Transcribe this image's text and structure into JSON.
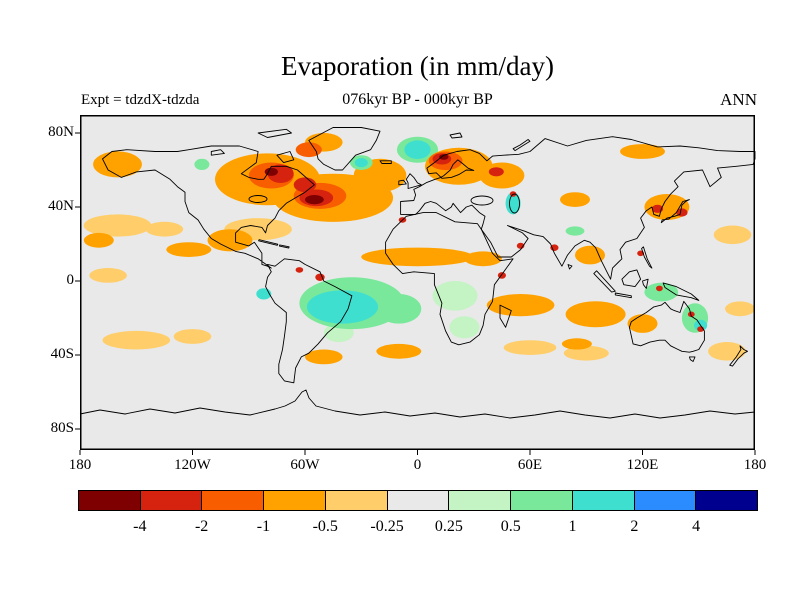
{
  "chart_data": {
    "type": "heatmap",
    "map_type": "global filled-contour anomaly map (equirectangular)",
    "title": "Evaporation (in mm/day)",
    "subtitle": "076kyr BP - 000kyr BP",
    "annotations": {
      "left": "Expt = tdzdX-tdzda",
      "right": "ANN"
    },
    "units": "mm/day",
    "background_color": "#e9e9e9",
    "x_axis": {
      "tick_values": [
        -180,
        -120,
        -60,
        0,
        60,
        120,
        180
      ],
      "tick_labels": [
        "180",
        "120W",
        "60W",
        "0",
        "60E",
        "120E",
        "180"
      ],
      "range": [
        -180,
        180
      ]
    },
    "y_axis": {
      "tick_values": [
        80,
        40,
        0,
        -40,
        -80
      ],
      "tick_labels": [
        "80N",
        "40N",
        "0",
        "40S",
        "80S"
      ],
      "range": [
        -90,
        90
      ]
    },
    "colorbar": {
      "levels": [
        -4,
        -2,
        -1,
        -0.5,
        -0.25,
        0.25,
        0.5,
        1,
        2,
        4
      ],
      "labels": [
        "-4",
        "-2",
        "-1",
        "-0.5",
        "-0.25",
        "0.25",
        "0.5",
        "1",
        "2",
        "4"
      ],
      "colors": [
        "#7e0000",
        "#d62310",
        "#f85e00",
        "#ffa200",
        "#ffce6b",
        "#e9e9e9",
        "#c4f3c4",
        "#79e89b",
        "#3fdfd0",
        "#2b8cff",
        "#00008f"
      ]
    },
    "anomaly_regions_format": [
      "lon_deg",
      "lat_deg",
      "radius_lon_deg",
      "radius_lat_deg",
      "color_level_index"
    ],
    "anomaly_regions": [
      [
        -80,
        55,
        28,
        14,
        3
      ],
      [
        -45,
        45,
        32,
        13,
        3
      ],
      [
        -20,
        57,
        14,
        9,
        3
      ],
      [
        -85,
        28,
        18,
        6,
        4
      ],
      [
        -165,
        3,
        10,
        4,
        4
      ],
      [
        -78,
        57,
        12,
        7,
        2
      ],
      [
        -52,
        46,
        14,
        7,
        2
      ],
      [
        -73,
        58,
        7,
        5,
        1
      ],
      [
        -78,
        59,
        3.5,
        2.2,
        0
      ],
      [
        -54,
        45,
        9,
        4.5,
        1
      ],
      [
        -60,
        52,
        6,
        4,
        1
      ],
      [
        -55,
        44,
        5,
        2.5,
        0
      ],
      [
        -58,
        71,
        7,
        4,
        2
      ],
      [
        -160,
        63,
        13,
        7,
        3
      ],
      [
        -50,
        75,
        10,
        5,
        3
      ],
      [
        -115,
        63,
        4,
        3,
        7
      ],
      [
        -122,
        17,
        12,
        4,
        3
      ],
      [
        -100,
        22,
        12,
        6,
        3
      ],
      [
        -52,
        2,
        2.5,
        2,
        1
      ],
      [
        -63,
        6,
        2,
        1.5,
        1
      ],
      [
        0,
        71,
        11,
        7,
        7
      ],
      [
        0,
        71,
        7,
        5,
        8
      ],
      [
        -30,
        64,
        6,
        4,
        7
      ],
      [
        -30,
        64,
        3.5,
        2.5,
        8
      ],
      [
        22,
        62,
        18,
        10,
        3
      ],
      [
        15,
        65,
        9,
        5,
        2
      ],
      [
        13,
        66,
        5,
        3,
        1
      ],
      [
        14,
        67,
        2.5,
        1.5,
        0
      ],
      [
        45,
        57,
        12,
        7,
        3
      ],
      [
        42,
        59,
        4,
        2.5,
        1
      ],
      [
        120,
        70,
        12,
        4,
        3
      ],
      [
        84,
        44,
        8,
        4,
        3
      ],
      [
        51,
        42,
        4,
        6,
        8
      ],
      [
        51,
        47,
        1.7,
        1.5,
        1
      ],
      [
        0,
        13,
        30,
        5,
        3
      ],
      [
        35,
        12,
        10,
        4,
        3
      ],
      [
        -8,
        33,
        2,
        1.5,
        1
      ],
      [
        45,
        3,
        2.2,
        1.8,
        1
      ],
      [
        20,
        -8,
        12,
        8,
        6
      ],
      [
        25,
        -25,
        8,
        6,
        6
      ],
      [
        -10,
        -15,
        12,
        8,
        7
      ],
      [
        -35,
        -12,
        28,
        14,
        7
      ],
      [
        -40,
        -14,
        19,
        9,
        8
      ],
      [
        -82,
        -7,
        4,
        3,
        8
      ],
      [
        -42,
        -28,
        8,
        5,
        6
      ],
      [
        -10,
        -38,
        12,
        4,
        3
      ],
      [
        55,
        -13,
        18,
        6,
        3
      ],
      [
        95,
        -18,
        16,
        7,
        3
      ],
      [
        92,
        14,
        8,
        5,
        3
      ],
      [
        73,
        18,
        2.2,
        1.8,
        1
      ],
      [
        55,
        19,
        2,
        1.7,
        1
      ],
      [
        84,
        27,
        5,
        2.5,
        7
      ],
      [
        60,
        -36,
        14,
        4,
        4
      ],
      [
        90,
        -39,
        12,
        4,
        4
      ],
      [
        85,
        -34,
        8,
        3,
        3
      ],
      [
        133,
        40,
        12,
        7,
        3
      ],
      [
        128,
        39,
        3,
        2.2,
        1
      ],
      [
        141,
        37,
        3,
        2.2,
        1
      ],
      [
        168,
        25,
        10,
        5,
        4
      ],
      [
        -160,
        30,
        18,
        6,
        4
      ],
      [
        -170,
        22,
        8,
        4,
        3
      ],
      [
        -135,
        28,
        10,
        4,
        4
      ],
      [
        130,
        -6,
        9,
        5,
        7
      ],
      [
        148,
        -20,
        7,
        8,
        7
      ],
      [
        151,
        -24,
        3.5,
        3,
        8
      ],
      [
        120,
        -23,
        8,
        5,
        3
      ],
      [
        146,
        -18,
        1.8,
        1.5,
        1
      ],
      [
        151,
        -26,
        1.8,
        1.5,
        1
      ],
      [
        129,
        -4,
        1.8,
        1.5,
        1
      ],
      [
        119,
        15,
        1.8,
        1.5,
        1
      ],
      [
        165,
        -38,
        10,
        5,
        4
      ],
      [
        172,
        -15,
        8,
        4,
        4
      ],
      [
        -150,
        -32,
        18,
        5,
        4
      ],
      [
        -120,
        -30,
        10,
        4,
        4
      ],
      [
        -50,
        -41,
        10,
        4,
        3
      ]
    ]
  }
}
